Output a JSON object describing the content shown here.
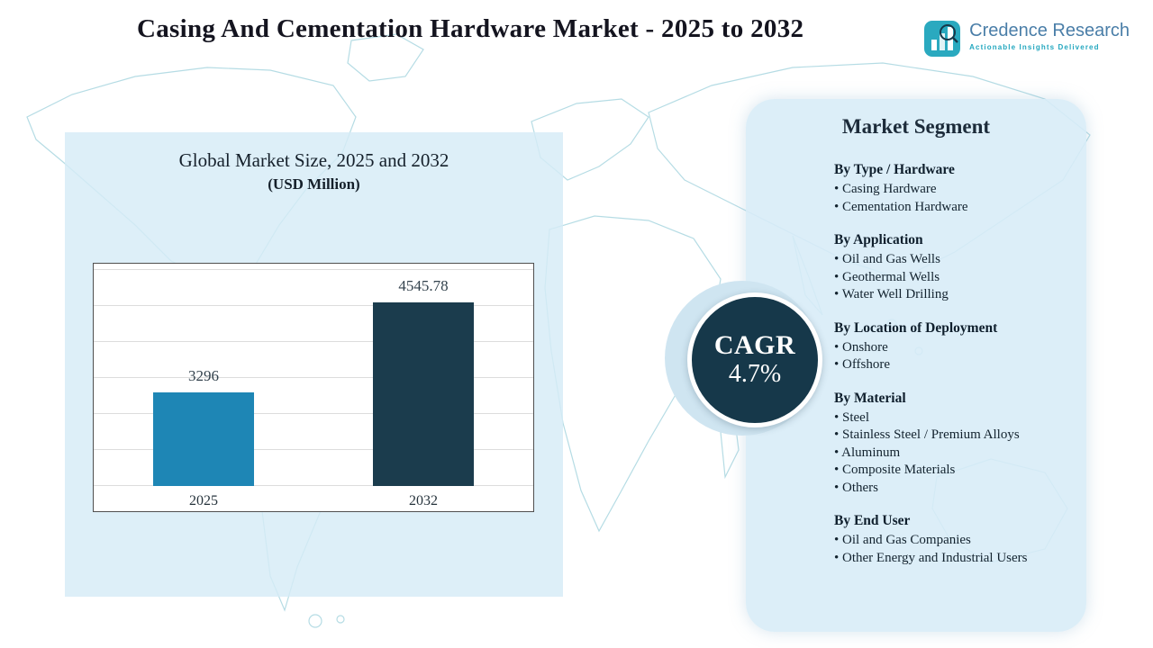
{
  "title": "Casing And Cementation Hardware Market - 2025 to 2032",
  "logo": {
    "name": "Credence Research",
    "tagline": "Actionable Insights Delivered"
  },
  "chart_data": {
    "type": "bar",
    "title": "Global Market Size, 2025 and 2032",
    "subtitle": "(USD Million)",
    "categories": [
      "2025",
      "2032"
    ],
    "values": [
      3296,
      4545.78
    ],
    "labels": [
      "3296",
      "4545.78"
    ],
    "ylim": [
      2000,
      5000
    ],
    "grid_step": 500,
    "grid": true,
    "legend": false,
    "bar_colors": [
      "#1e86b5",
      "#1b3c4d"
    ]
  },
  "cagr": {
    "label": "CAGR",
    "value": "4.7%"
  },
  "segments": {
    "title": "Market Segment",
    "groups": [
      {
        "heading": "By Type / Hardware",
        "items": [
          "Casing Hardware",
          "Cementation Hardware"
        ]
      },
      {
        "heading": "By Application",
        "items": [
          "Oil and Gas Wells",
          "Geothermal Wells",
          "Water Well Drilling"
        ]
      },
      {
        "heading": "By Location of Deployment",
        "items": [
          "Onshore",
          "Offshore"
        ]
      },
      {
        "heading": "By Material",
        "items": [
          "Steel",
          "Stainless Steel / Premium Alloys",
          "Aluminum",
          "Composite Materials",
          "Others"
        ]
      },
      {
        "heading": "By End User",
        "items": [
          "Oil and Gas Companies",
          "Other Energy and Industrial Users"
        ]
      }
    ]
  },
  "colors": {
    "accent_dark": "#16384a",
    "accent_blue": "#1e86b5",
    "panel_blue": "#d7ecf7",
    "map_line": "#a9d6e0",
    "logo_teal": "#23a7bf",
    "logo_blue": "#4a7ea8"
  }
}
